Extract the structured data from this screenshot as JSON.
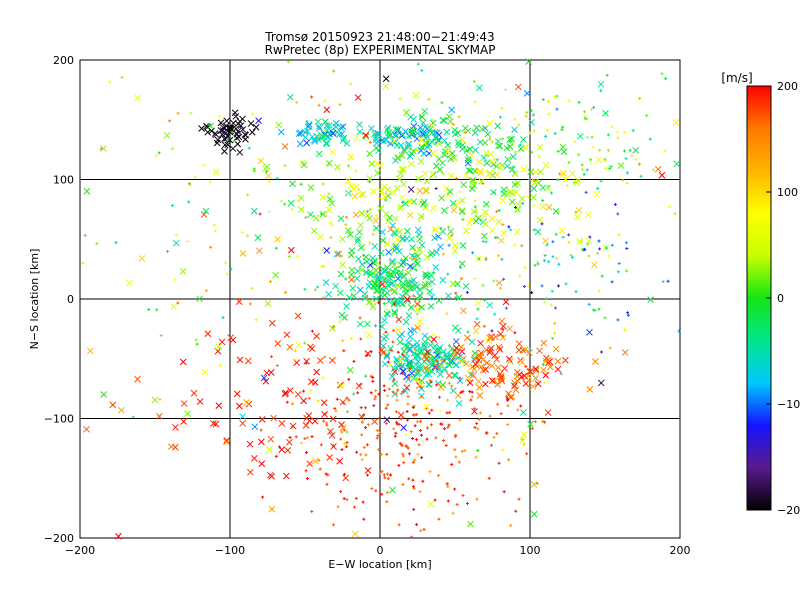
{
  "chart_data": {
    "type": "scatter",
    "title": "Tromsø 20150923 21:48:00−21:49:43",
    "subtitle": "RwPretec (8p) EXPERIMENTAL SKYMAP",
    "xlabel": "E−W location [km]",
    "ylabel": "N−S location [km]",
    "xlim": [
      -200,
      200
    ],
    "ylim": [
      -200,
      200
    ],
    "x_ticks": [
      "−200",
      "−100",
      "0",
      "100",
      "200"
    ],
    "y_ticks": [
      "−200",
      "−100",
      "0",
      "100",
      "200"
    ],
    "grid": true,
    "marker_types": [
      "x",
      "+"
    ],
    "colorbar": {
      "label": "[m/s]",
      "range": [
        -200,
        200
      ],
      "ticks": [
        "200",
        "100",
        "0",
        "−100",
        "−200"
      ],
      "colormap": [
        "#000000",
        "#5a1a8c",
        "#1414ff",
        "#00c8ff",
        "#00e68c",
        "#14e614",
        "#c8ff00",
        "#ffff00",
        "#ffb400",
        "#ff7800",
        "#ff0000"
      ]
    },
    "clusters": [
      {
        "x": -100,
        "y": 140,
        "sx": 8,
        "sy": 6,
        "n": 55,
        "v": -195,
        "vs": 8,
        "mk": "x"
      },
      {
        "x": -40,
        "y": 138,
        "sx": 10,
        "sy": 5,
        "n": 45,
        "v": -60,
        "vs": 25,
        "mk": "x"
      },
      {
        "x": 15,
        "y": 138,
        "sx": 14,
        "sy": 6,
        "n": 70,
        "v": -70,
        "vs": 25,
        "mk": "x"
      },
      {
        "x": 55,
        "y": 130,
        "sx": 30,
        "sy": 12,
        "n": 70,
        "v": -20,
        "vs": 30,
        "mk": "x"
      },
      {
        "x": 130,
        "y": 140,
        "sx": 40,
        "sy": 30,
        "n": 90,
        "v": 20,
        "vs": 40,
        "mk": "+"
      },
      {
        "x": 40,
        "y": 90,
        "sx": 55,
        "sy": 30,
        "n": 240,
        "v": 35,
        "vs": 40,
        "mk": "x"
      },
      {
        "x": 10,
        "y": 15,
        "sx": 18,
        "sy": 18,
        "n": 180,
        "v": -30,
        "vs": 30,
        "mk": "x"
      },
      {
        "x": 120,
        "y": 30,
        "sx": 40,
        "sy": 35,
        "n": 90,
        "v": -60,
        "vs": 60,
        "mk": "+"
      },
      {
        "x": 30,
        "y": -50,
        "sx": 15,
        "sy": 12,
        "n": 140,
        "v": -45,
        "vs": 30,
        "mk": "x"
      },
      {
        "x": 80,
        "y": -55,
        "sx": 25,
        "sy": 15,
        "n": 120,
        "v": 165,
        "vs": 30,
        "mk": "x"
      },
      {
        "x": 20,
        "y": -110,
        "sx": 40,
        "sy": 40,
        "n": 300,
        "v": 180,
        "vs": 25,
        "mk": "+"
      },
      {
        "x": -60,
        "y": -80,
        "sx": 40,
        "sy": 40,
        "n": 90,
        "v": 190,
        "vs": 10,
        "mk": "x"
      },
      {
        "x": 0,
        "y": 60,
        "sx": 90,
        "sy": 80,
        "n": 280,
        "v": 60,
        "vs": 60,
        "mk": "+"
      },
      {
        "x": 0,
        "y": 0,
        "sx": 120,
        "sy": 120,
        "n": 160,
        "v": 60,
        "vs": 90,
        "mk": "x"
      }
    ]
  }
}
